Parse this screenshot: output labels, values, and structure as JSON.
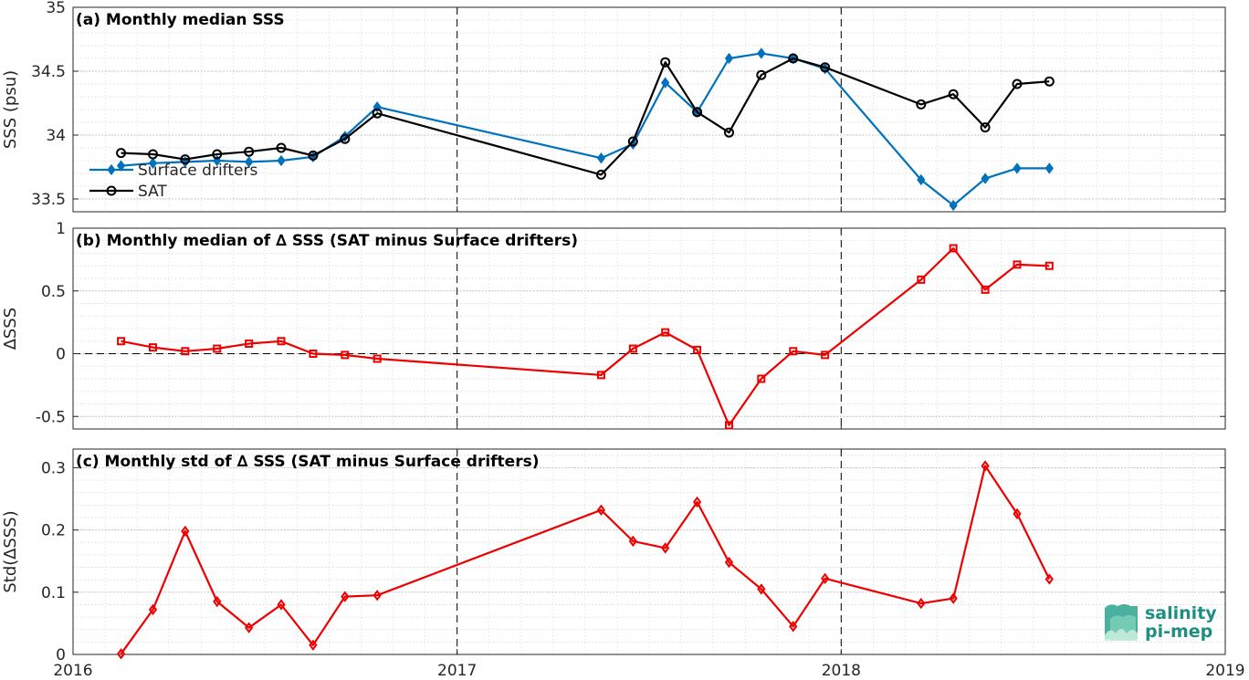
{
  "chart_data": [
    {
      "type": "line",
      "title": "(a) Monthly median SSS",
      "ylabel": "SSS (psu)",
      "xlim": [
        2016,
        2019
      ],
      "ylim": [
        33.4,
        35
      ],
      "yticks": [
        33.5,
        34,
        34.5,
        35
      ],
      "ytick_labels": [
        "33.5",
        "34",
        "34.5",
        "35"
      ],
      "x": [
        2016.125,
        2016.208,
        2016.292,
        2016.375,
        2016.458,
        2016.542,
        2016.625,
        2016.708,
        2016.792,
        2017.375,
        2017.458,
        2017.542,
        2017.625,
        2017.708,
        2017.792,
        2017.875,
        2017.958,
        2018.208,
        2018.292,
        2018.375,
        2018.458,
        2018.542
      ],
      "series": [
        {
          "name": "Surface drifters",
          "color": "#0072BD",
          "marker": "diamond",
          "values": [
            33.76,
            33.78,
            33.79,
            33.8,
            33.79,
            33.8,
            33.83,
            33.99,
            34.22,
            33.82,
            33.93,
            34.41,
            34.18,
            34.6,
            34.64,
            34.6,
            34.52,
            33.65,
            33.45,
            33.66,
            33.74,
            33.74
          ]
        },
        {
          "name": "SAT",
          "color": "#000000",
          "marker": "circle",
          "values": [
            33.86,
            33.85,
            33.81,
            33.85,
            33.87,
            33.9,
            33.84,
            33.97,
            34.17,
            33.69,
            33.95,
            34.57,
            34.18,
            34.02,
            34.47,
            34.6,
            34.53,
            34.24,
            34.32,
            34.06,
            34.4,
            34.42
          ]
        }
      ],
      "legend": "lower-left",
      "vlines": [
        2017,
        2018
      ],
      "grid": true
    },
    {
      "type": "line",
      "title": "(b) Monthly median of ∆ SSS (SAT minus Surface drifters)",
      "ylabel": "∆SSS",
      "xlim": [
        2016,
        2019
      ],
      "ylim": [
        -0.6,
        1
      ],
      "yticks": [
        -0.5,
        0,
        0.5,
        1
      ],
      "ytick_labels": [
        "-0.5",
        "0",
        "0.5",
        "1"
      ],
      "x": [
        2016.125,
        2016.208,
        2016.292,
        2016.375,
        2016.458,
        2016.542,
        2016.625,
        2016.708,
        2016.792,
        2017.375,
        2017.458,
        2017.542,
        2017.625,
        2017.708,
        2017.792,
        2017.875,
        2017.958,
        2018.208,
        2018.292,
        2018.375,
        2018.458,
        2018.542
      ],
      "series": [
        {
          "color": "#EE0000",
          "marker": "square",
          "values": [
            0.1,
            0.05,
            0.02,
            0.04,
            0.08,
            0.1,
            0.0,
            -0.01,
            -0.04,
            -0.17,
            0.04,
            0.17,
            0.03,
            -0.57,
            -0.2,
            0.02,
            -0.01,
            0.59,
            0.84,
            0.51,
            0.71,
            0.7
          ]
        }
      ],
      "hline_dashed": 0,
      "vlines": [
        2017,
        2018
      ],
      "grid": true
    },
    {
      "type": "line",
      "title": "(c) Monthly std of ∆ SSS (SAT minus Surface drifters)",
      "ylabel": "Std(∆SSS)",
      "xlim": [
        2016,
        2019
      ],
      "ylim": [
        0,
        0.33
      ],
      "yticks": [
        0,
        0.1,
        0.2,
        0.3
      ],
      "ytick_labels": [
        "0",
        "0.1",
        "0.2",
        "0.3"
      ],
      "xticks": [
        2016,
        2017,
        2018,
        2019
      ],
      "xtick_labels": [
        "2016",
        "2017",
        "2018",
        "2019"
      ],
      "x": [
        2016.125,
        2016.208,
        2016.292,
        2016.375,
        2016.458,
        2016.542,
        2016.625,
        2016.708,
        2016.792,
        2017.375,
        2017.458,
        2017.542,
        2017.625,
        2017.708,
        2017.792,
        2017.875,
        2017.958,
        2018.208,
        2018.292,
        2018.375,
        2018.458,
        2018.542
      ],
      "series": [
        {
          "color": "#EE0000",
          "marker": "diamond",
          "values": [
            0.001,
            0.072,
            0.198,
            0.085,
            0.043,
            0.08,
            0.015,
            0.093,
            0.095,
            0.232,
            0.182,
            0.171,
            0.245,
            0.148,
            0.105,
            0.045,
            0.122,
            0.082,
            0.09,
            0.303,
            0.226,
            0.121
          ]
        }
      ],
      "vlines": [
        2017,
        2018
      ],
      "grid": true
    }
  ],
  "logo": {
    "line1": "salinity",
    "line2": "pi-mep",
    "color": "#1f8f84"
  }
}
